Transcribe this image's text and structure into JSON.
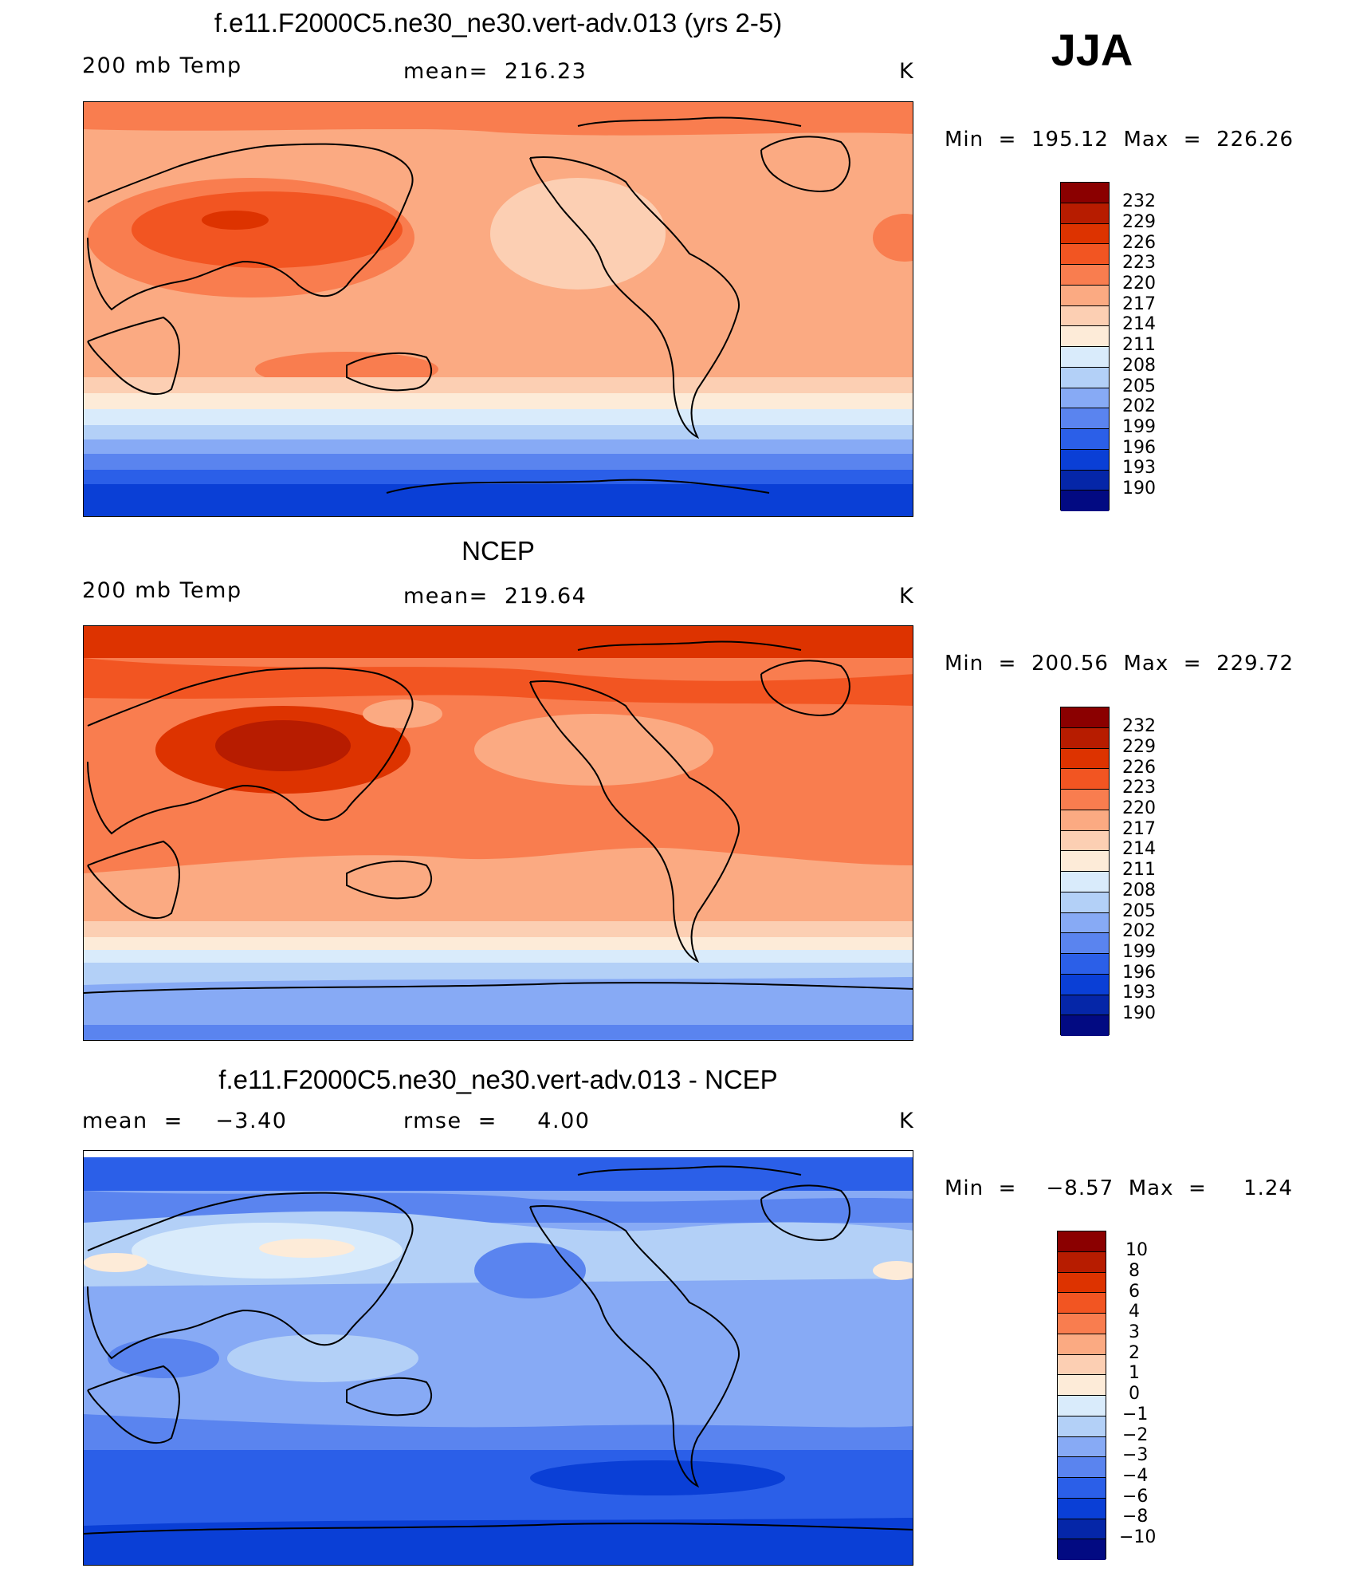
{
  "season": "JJA",
  "panels": [
    {
      "title": "f.e11.F2000C5.ne30_ne30.vert-adv.013 (yrs 2-5)",
      "left_label": "200 mb Temp",
      "center_label": "mean=  216.23",
      "units": "K",
      "minmax": "Min  =  195.12  Max  =  226.26",
      "colorbar_levels": [
        "232",
        "229",
        "226",
        "223",
        "220",
        "217",
        "214",
        "211",
        "208",
        "205",
        "202",
        "199",
        "196",
        "193",
        "190"
      ]
    },
    {
      "title": "NCEP",
      "left_label": "200 mb Temp",
      "center_label": "mean=  219.64",
      "units": "K",
      "minmax": "Min  =  200.56  Max  =  229.72",
      "colorbar_levels": [
        "232",
        "229",
        "226",
        "223",
        "220",
        "217",
        "214",
        "211",
        "208",
        "205",
        "202",
        "199",
        "196",
        "193",
        "190"
      ]
    },
    {
      "title": "f.e11.F2000C5.ne30_ne30.vert-adv.013 - NCEP",
      "left_label": "mean  =    −3.40",
      "center_label": "rmse  =     4.00",
      "units": "K",
      "minmax": "Min  =    −8.57  Max  =     1.24",
      "colorbar_levels": [
        "10",
        "8",
        "6",
        "4",
        "3",
        "2",
        "1",
        "0",
        "−1",
        "−2",
        "−3",
        "−4",
        "−6",
        "−8",
        "−10"
      ]
    }
  ],
  "palette": [
    "#8b0000",
    "#b71c00",
    "#dd3300",
    "#f25522",
    "#f97d4f",
    "#fbaa82",
    "#fccfb3",
    "#fdebd8",
    "#d9ebfb",
    "#b3d0f7",
    "#87aaf5",
    "#5a84ef",
    "#2b5fe8",
    "#0a3fd6",
    "#0526a8",
    "#020a82"
  ],
  "icons": {
    "coastlines": "world-coastline-outline"
  }
}
